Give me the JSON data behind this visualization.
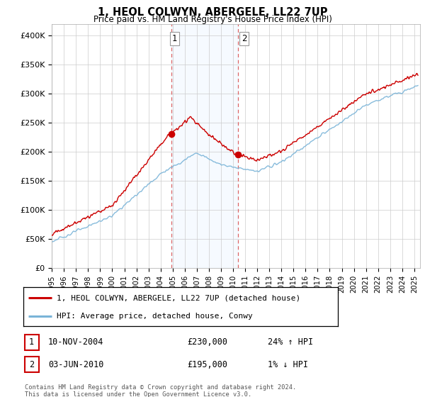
{
  "title": "1, HEOL COLWYN, ABERGELE, LL22 7UP",
  "subtitle": "Price paid vs. HM Land Registry's House Price Index (HPI)",
  "legend_line1": "1, HEOL COLWYN, ABERGELE, LL22 7UP (detached house)",
  "legend_line2": "HPI: Average price, detached house, Conwy",
  "annotation1_date": "10-NOV-2004",
  "annotation1_price_str": "£230,000",
  "annotation1_hpi": "24% ↑ HPI",
  "annotation2_date": "03-JUN-2010",
  "annotation2_price_str": "£195,000",
  "annotation2_hpi": "1% ↓ HPI",
  "footer": "Contains HM Land Registry data © Crown copyright and database right 2024.\nThis data is licensed under the Open Government Licence v3.0.",
  "xmin": 1995.0,
  "xmax": 2025.5,
  "ymin": 0,
  "ymax": 420000,
  "sale1_x": 2004.87,
  "sale1_y": 230000,
  "sale2_x": 2010.42,
  "sale2_y": 195000,
  "hpi_color": "#7ab4d8",
  "price_color": "#cc0000",
  "highlight_color": "#ddeeff",
  "vline_color": "#dd6666",
  "background_color": "#ffffff",
  "grid_color": "#cccccc",
  "yticks": [
    0,
    50000,
    100000,
    150000,
    200000,
    250000,
    300000,
    350000,
    400000
  ],
  "ylabels": [
    "£0",
    "£50K",
    "£100K",
    "£150K",
    "£200K",
    "£250K",
    "£300K",
    "£350K",
    "£400K"
  ]
}
